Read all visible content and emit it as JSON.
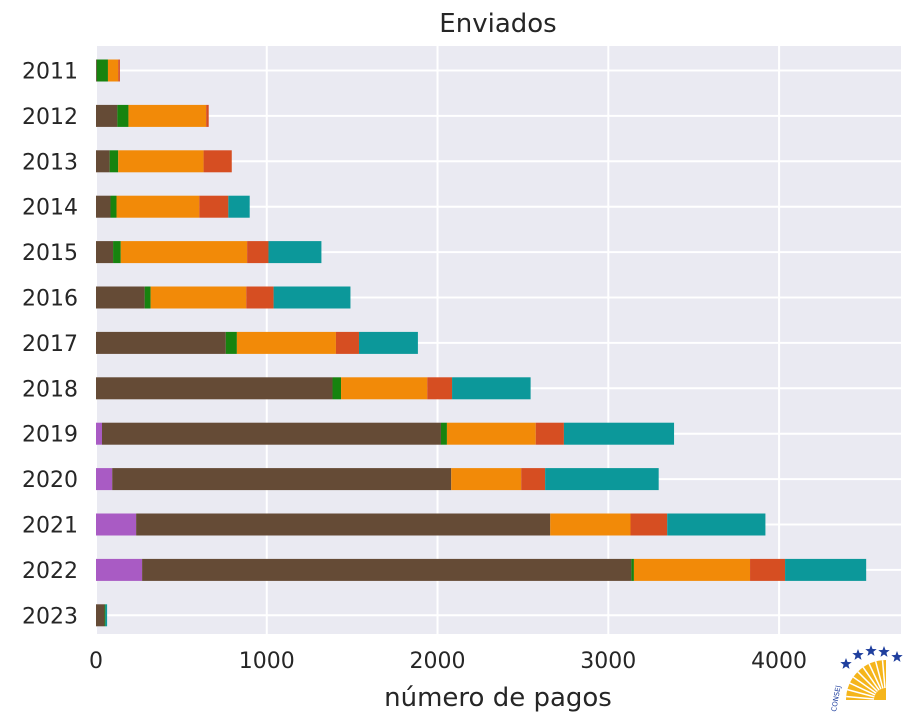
{
  "chart_data": {
    "type": "bar",
    "orientation": "horizontal",
    "stacked": true,
    "title": "Enviados",
    "xlabel": "número de pagos",
    "ylabel": "",
    "xlim": [
      0,
      4700
    ],
    "xticks": [
      0,
      1000,
      2000,
      3000,
      4000
    ],
    "categories": [
      "2011",
      "2012",
      "2013",
      "2014",
      "2015",
      "2016",
      "2017",
      "2018",
      "2019",
      "2020",
      "2021",
      "2022",
      "2023"
    ],
    "grid": true,
    "series": [
      {
        "color": "#a95bc4",
        "values": [
          0,
          0,
          0,
          0,
          0,
          0,
          0,
          0,
          35,
          95,
          235,
          270,
          0
        ]
      },
      {
        "color": "#654b36",
        "values": [
          5,
          125,
          80,
          85,
          100,
          285,
          760,
          1385,
          1985,
          1985,
          2425,
          2865,
          50
        ]
      },
      {
        "color": "#17830f",
        "values": [
          65,
          65,
          50,
          35,
          45,
          35,
          65,
          50,
          35,
          0,
          0,
          15,
          5
        ]
      },
      {
        "color": "#f28a08",
        "values": [
          60,
          455,
          500,
          485,
          740,
          560,
          580,
          505,
          520,
          410,
          470,
          680,
          0
        ]
      },
      {
        "color": "#d64e22",
        "values": [
          10,
          15,
          165,
          170,
          125,
          160,
          135,
          145,
          165,
          140,
          215,
          205,
          0
        ]
      },
      {
        "color": "#0c989a",
        "values": [
          0,
          0,
          0,
          125,
          310,
          450,
          345,
          460,
          645,
          665,
          575,
          475,
          10
        ]
      }
    ]
  },
  "logo": {
    "text": "CONSEJ",
    "star_color": "#1f3f9e",
    "sun_color": "#f5b51b"
  }
}
